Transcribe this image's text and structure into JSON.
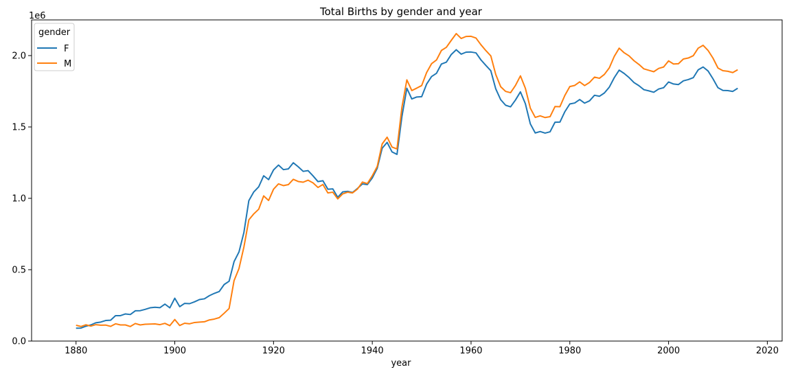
{
  "chart_data": {
    "type": "line",
    "title": "Total Births by gender and year",
    "xlabel": "year",
    "ylabel": "",
    "y_offset_label": "1e6",
    "xlim": [
      1871,
      2023
    ],
    "ylim": [
      0,
      2.25
    ],
    "x_ticks": [
      1880,
      1900,
      1920,
      1940,
      1960,
      1980,
      2000,
      2020
    ],
    "y_ticks": [
      0.0,
      0.5,
      1.0,
      1.5,
      2.0
    ],
    "y_tick_labels": [
      "0.0",
      "0.5",
      "1.0",
      "1.5",
      "2.0"
    ],
    "grid": false,
    "legend": {
      "title": "gender",
      "placement": "top-left"
    },
    "series": [
      {
        "name": "F",
        "color": "#1f77b4",
        "x_start": 1880,
        "values": [
          0.09,
          0.091,
          0.104,
          0.113,
          0.128,
          0.133,
          0.144,
          0.146,
          0.178,
          0.178,
          0.19,
          0.186,
          0.212,
          0.213,
          0.222,
          0.233,
          0.237,
          0.234,
          0.259,
          0.233,
          0.3,
          0.241,
          0.264,
          0.262,
          0.275,
          0.291,
          0.296,
          0.318,
          0.334,
          0.347,
          0.396,
          0.419,
          0.556,
          0.624,
          0.761,
          0.984,
          1.045,
          1.081,
          1.158,
          1.131,
          1.199,
          1.233,
          1.201,
          1.206,
          1.249,
          1.221,
          1.189,
          1.194,
          1.157,
          1.117,
          1.123,
          1.064,
          1.066,
          1.007,
          1.045,
          1.049,
          1.041,
          1.069,
          1.101,
          1.096,
          1.143,
          1.211,
          1.351,
          1.392,
          1.325,
          1.308,
          1.573,
          1.771,
          1.696,
          1.71,
          1.712,
          1.8,
          1.853,
          1.876,
          1.941,
          1.954,
          2.008,
          2.041,
          2.01,
          2.024,
          2.025,
          2.019,
          1.97,
          1.931,
          1.894,
          1.767,
          1.691,
          1.652,
          1.641,
          1.689,
          1.746,
          1.663,
          1.522,
          1.458,
          1.468,
          1.457,
          1.466,
          1.533,
          1.534,
          1.607,
          1.661,
          1.668,
          1.692,
          1.667,
          1.683,
          1.722,
          1.715,
          1.738,
          1.779,
          1.845,
          1.898,
          1.875,
          1.846,
          1.811,
          1.789,
          1.761,
          1.753,
          1.743,
          1.766,
          1.775,
          1.815,
          1.801,
          1.797,
          1.823,
          1.832,
          1.845,
          1.9,
          1.92,
          1.892,
          1.837,
          1.775,
          1.756,
          1.755,
          1.749,
          1.771
        ]
      },
      {
        "name": "M",
        "color": "#ff7f0e",
        "x_start": 1880,
        "values": [
          0.111,
          0.102,
          0.114,
          0.105,
          0.115,
          0.111,
          0.112,
          0.103,
          0.121,
          0.113,
          0.113,
          0.102,
          0.123,
          0.113,
          0.118,
          0.119,
          0.12,
          0.115,
          0.124,
          0.108,
          0.151,
          0.109,
          0.125,
          0.121,
          0.13,
          0.133,
          0.135,
          0.148,
          0.154,
          0.164,
          0.195,
          0.228,
          0.423,
          0.508,
          0.659,
          0.849,
          0.891,
          0.924,
          1.017,
          0.985,
          1.064,
          1.101,
          1.089,
          1.096,
          1.133,
          1.118,
          1.113,
          1.127,
          1.108,
          1.076,
          1.097,
          1.038,
          1.043,
          0.996,
          1.031,
          1.043,
          1.038,
          1.065,
          1.114,
          1.103,
          1.158,
          1.223,
          1.381,
          1.428,
          1.359,
          1.346,
          1.638,
          1.83,
          1.755,
          1.772,
          1.79,
          1.881,
          1.943,
          1.969,
          2.036,
          2.058,
          2.107,
          2.154,
          2.12,
          2.134,
          2.135,
          2.123,
          2.076,
          2.035,
          1.998,
          1.868,
          1.782,
          1.749,
          1.74,
          1.791,
          1.858,
          1.771,
          1.632,
          1.567,
          1.578,
          1.566,
          1.572,
          1.643,
          1.642,
          1.721,
          1.783,
          1.791,
          1.816,
          1.79,
          1.812,
          1.849,
          1.841,
          1.868,
          1.914,
          1.994,
          2.052,
          2.02,
          1.998,
          1.964,
          1.938,
          1.907,
          1.897,
          1.887,
          1.91,
          1.92,
          1.963,
          1.941,
          1.943,
          1.976,
          1.983,
          1.999,
          2.052,
          2.072,
          2.036,
          1.982,
          1.913,
          1.894,
          1.89,
          1.881,
          1.901
        ]
      }
    ]
  }
}
